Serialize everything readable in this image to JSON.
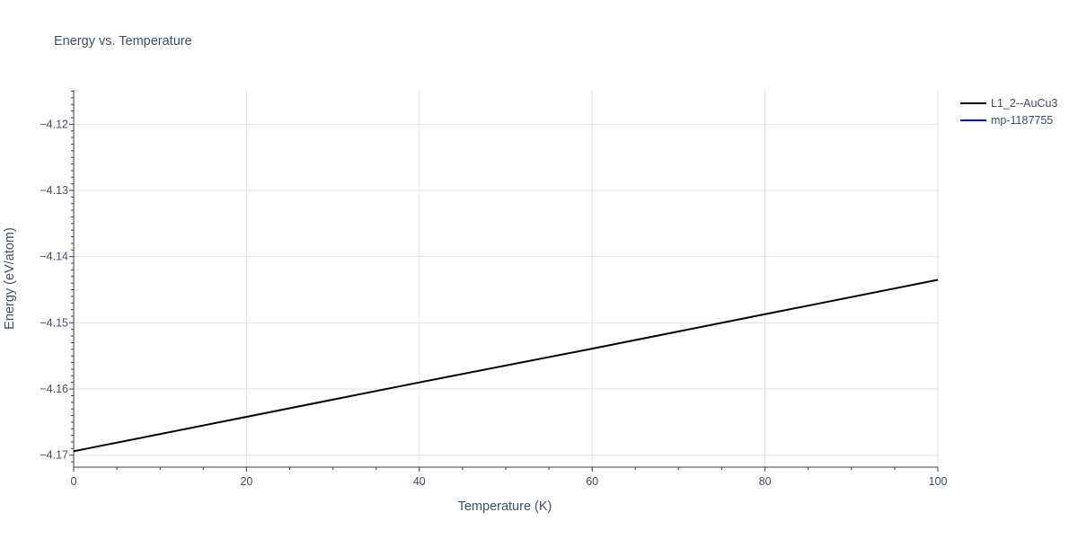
{
  "chart_data": {
    "type": "line",
    "title": "Energy vs. Temperature",
    "xlabel": "Temperature (K)",
    "ylabel": "Energy (eV/atom)",
    "xlim": [
      0,
      100
    ],
    "ylim": [
      -4.1718,
      -4.1148
    ],
    "x_ticks": [
      0,
      20,
      40,
      60,
      80,
      100
    ],
    "x_tick_labels": [
      "0",
      "20",
      "40",
      "60",
      "80",
      "100"
    ],
    "x_minor_step": 5,
    "y_ticks": [
      -4.17,
      -4.16,
      -4.15,
      -4.14,
      -4.13,
      -4.12
    ],
    "y_tick_labels": [
      "−4.17",
      "−4.16",
      "−4.15",
      "−4.14",
      "−4.13",
      "−4.12"
    ],
    "y_minor_step": 0.001,
    "grid": true,
    "legend_position": "top-right",
    "series": [
      {
        "name": "L1_2--AuCu3",
        "color": "#000000",
        "x": [
          0,
          20,
          40,
          60,
          80,
          100
        ],
        "y": [
          -4.1694,
          -4.1642,
          -4.159,
          -4.1539,
          -4.1487,
          -4.1435
        ]
      },
      {
        "name": "mp-1187755",
        "color": "#0000ff",
        "x": [],
        "y": []
      }
    ]
  }
}
